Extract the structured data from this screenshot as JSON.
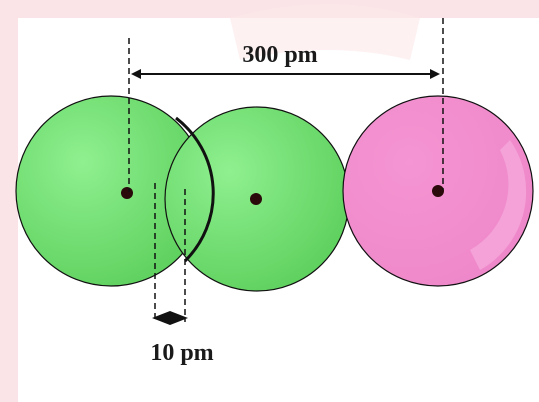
{
  "labels": {
    "distance_top": "300 pm",
    "distance_bottom": "10 pm"
  },
  "colors": {
    "background": "#ffffff",
    "frame_watermark": "#f3c6cc",
    "atom_green": "#6cd96c",
    "atom_green_highlight": "#9bf09b",
    "atom_pink": "#f28dcd",
    "atom_pink_highlight": "#f8b9e2",
    "nucleus": "#2a0a0a",
    "line": "#111111"
  }
}
